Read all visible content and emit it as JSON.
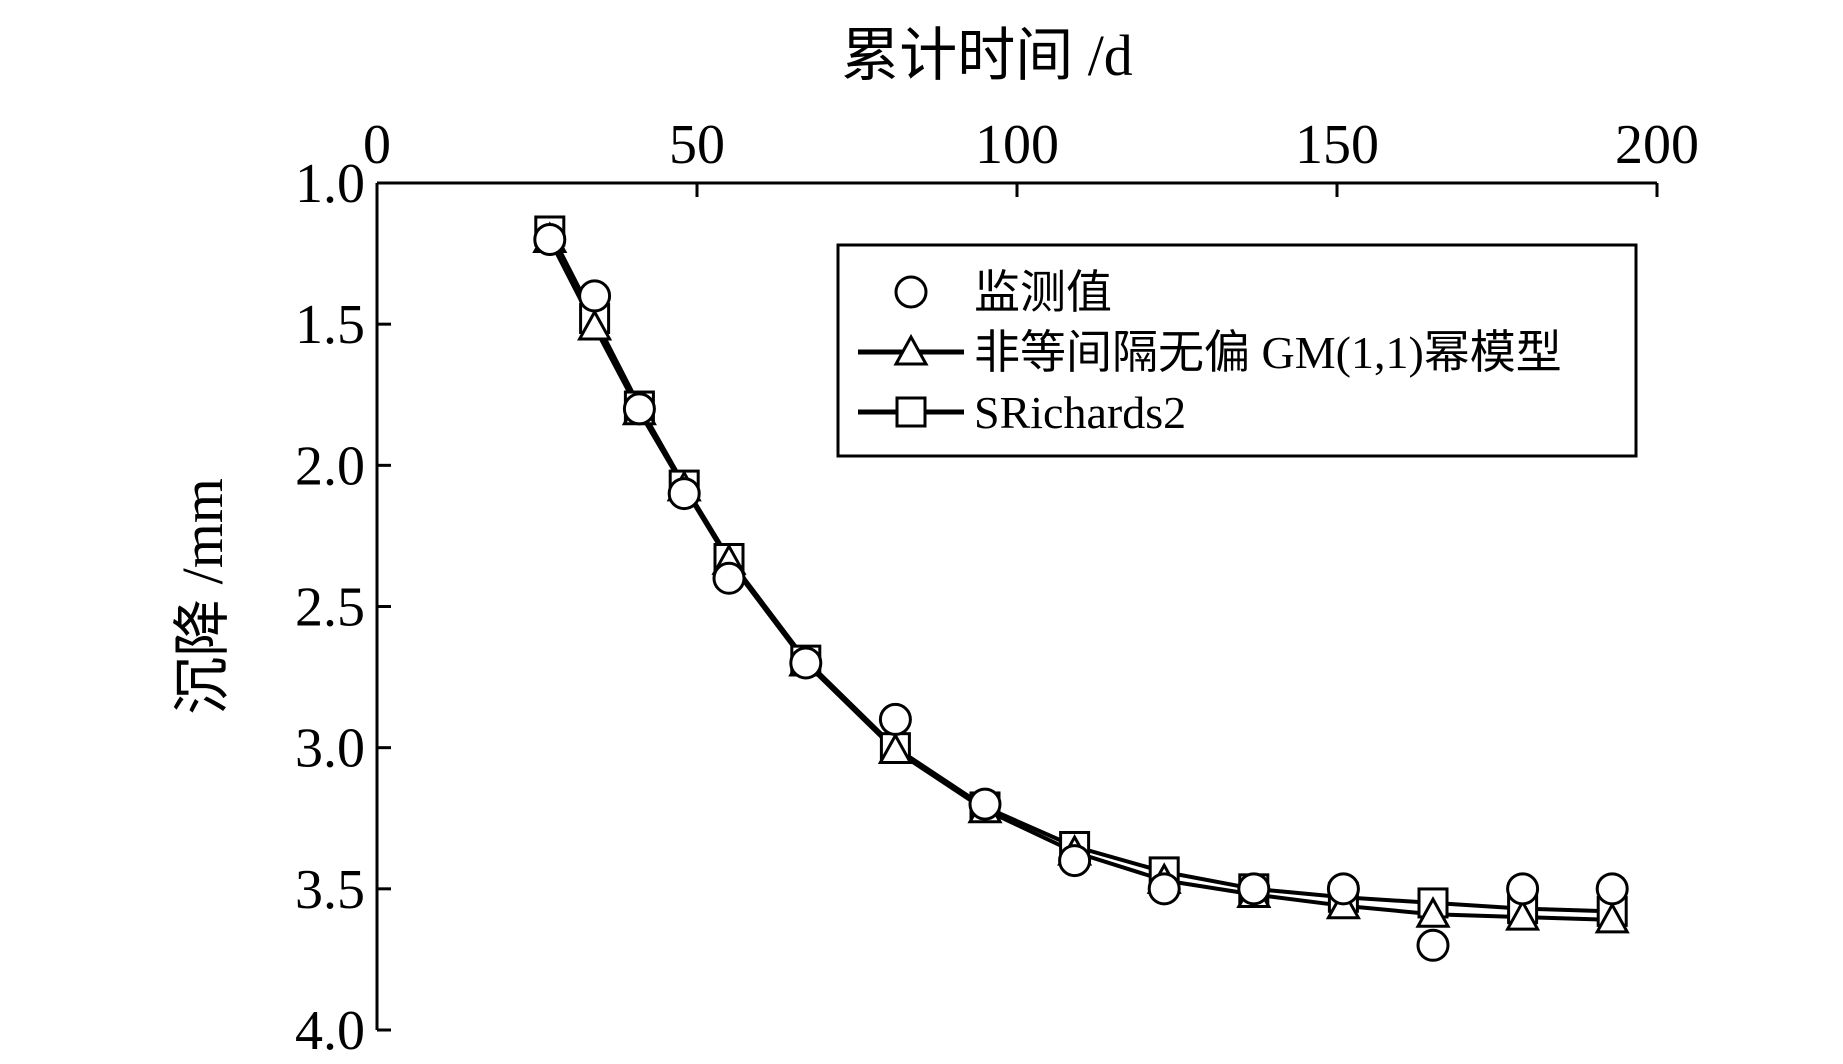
{
  "chart_data": {
    "type": "line",
    "xlabel": "累计时间 /d",
    "ylabel": "沉降 /mm",
    "xlim": [
      0,
      200
    ],
    "ylim": [
      1.0,
      4.0
    ],
    "y_inverted": true,
    "x_axis_position": "top",
    "x_ticks": [
      "0",
      "50",
      "100",
      "150",
      "200"
    ],
    "y_ticks": [
      "1.0",
      "1.5",
      "2.0",
      "2.5",
      "3.0",
      "3.5",
      "4.0"
    ],
    "grid": false,
    "legend_position": "top-right",
    "series": [
      {
        "name": "监测值",
        "marker": "circle",
        "line": false,
        "x": [
          27,
          34,
          41,
          48,
          55,
          67,
          81,
          95,
          109,
          123,
          137,
          151,
          165,
          179,
          193
        ],
        "y": [
          1.2,
          1.4,
          1.8,
          2.1,
          2.4,
          2.7,
          2.9,
          3.2,
          3.4,
          3.5,
          3.5,
          3.5,
          3.7,
          3.5,
          3.5
        ]
      },
      {
        "name": "非等间隔无偏 GM(1,1)幂模型",
        "marker": "triangle",
        "line": true,
        "x": [
          27,
          34,
          41,
          48,
          55,
          67,
          81,
          95,
          109,
          123,
          137,
          151,
          165,
          179,
          193
        ],
        "y": [
          1.2,
          1.51,
          1.81,
          2.08,
          2.34,
          2.7,
          3.01,
          3.22,
          3.37,
          3.47,
          3.52,
          3.56,
          3.59,
          3.6,
          3.61
        ]
      },
      {
        "name": "SRichards2",
        "marker": "square",
        "line": true,
        "x": [
          27,
          34,
          41,
          48,
          55,
          67,
          81,
          95,
          109,
          123,
          137,
          151,
          165,
          179,
          193
        ],
        "y": [
          1.17,
          1.48,
          1.79,
          2.07,
          2.33,
          2.69,
          3.0,
          3.21,
          3.35,
          3.44,
          3.5,
          3.53,
          3.55,
          3.57,
          3.58
        ]
      }
    ]
  }
}
